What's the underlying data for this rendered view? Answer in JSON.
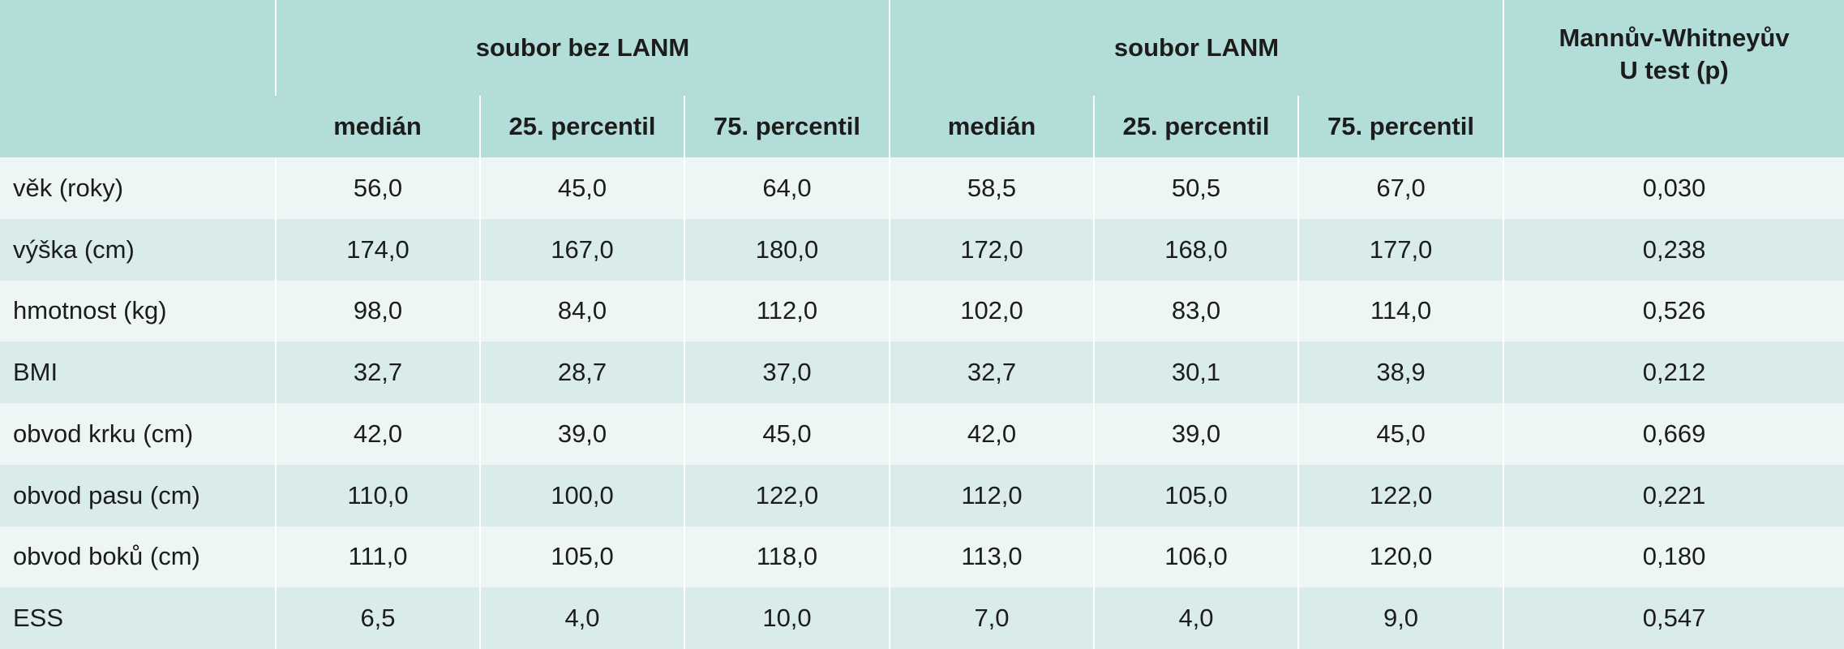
{
  "header": {
    "group_without": "soubor bez LANM",
    "group_with": "soubor LANM",
    "test_line1": "Mannův-Whitneyův",
    "test_line2": "U test (p)",
    "sub": [
      "medián",
      "25. percentil",
      "75. percentil",
      "medián",
      "25. percentil",
      "75. percentil"
    ]
  },
  "rows": [
    {
      "label": "věk (roky)",
      "values": [
        "56,0",
        "45,0",
        "64,0",
        "58,5",
        "50,5",
        "67,0",
        "0,030"
      ]
    },
    {
      "label": "výška (cm)",
      "values": [
        "174,0",
        "167,0",
        "180,0",
        "172,0",
        "168,0",
        "177,0",
        "0,238"
      ]
    },
    {
      "label": "hmotnost (kg)",
      "values": [
        "98,0",
        "84,0",
        "112,0",
        "102,0",
        "83,0",
        "114,0",
        "0,526"
      ]
    },
    {
      "label": "BMI",
      "values": [
        "32,7",
        "28,7",
        "37,0",
        "32,7",
        "30,1",
        "38,9",
        "0,212"
      ]
    },
    {
      "label": "obvod krku (cm)",
      "values": [
        "42,0",
        "39,0",
        "45,0",
        "42,0",
        "39,0",
        "45,0",
        "0,669"
      ]
    },
    {
      "label": "obvod pasu (cm)",
      "values": [
        "110,0",
        "100,0",
        "122,0",
        "112,0",
        "105,0",
        "122,0",
        "0,221"
      ]
    },
    {
      "label": "obvod boků (cm)",
      "values": [
        "111,0",
        "105,0",
        "118,0",
        "113,0",
        "106,0",
        "120,0",
        "0,180"
      ]
    },
    {
      "label": "ESS",
      "values": [
        "6,5",
        "4,0",
        "10,0",
        "7,0",
        "4,0",
        "9,0",
        "0,547"
      ]
    }
  ]
}
